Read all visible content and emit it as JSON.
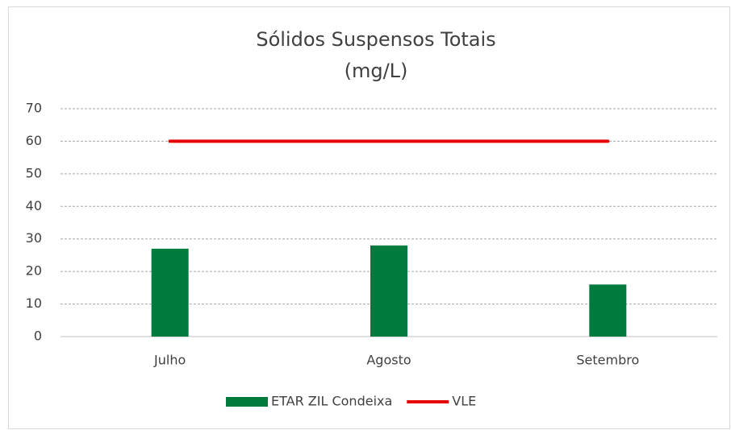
{
  "chart_data": {
    "type": "bar",
    "title": "Sólidos Suspensos Totais",
    "subtitle": "(mg/L)",
    "categories": [
      "Julho",
      "Agosto",
      "Setembro"
    ],
    "series": [
      {
        "name": "ETAR ZIL Condeixa",
        "type": "bar",
        "color": "#007a3d",
        "values": [
          27,
          28,
          16
        ]
      },
      {
        "name": "VLE",
        "type": "line",
        "color": "#e60000",
        "values": [
          60,
          60,
          60
        ]
      }
    ],
    "ylim": [
      0,
      70
    ],
    "yticks": [
      0,
      10,
      20,
      30,
      40,
      50,
      60,
      70
    ],
    "grid": true,
    "legend": "bottom"
  }
}
